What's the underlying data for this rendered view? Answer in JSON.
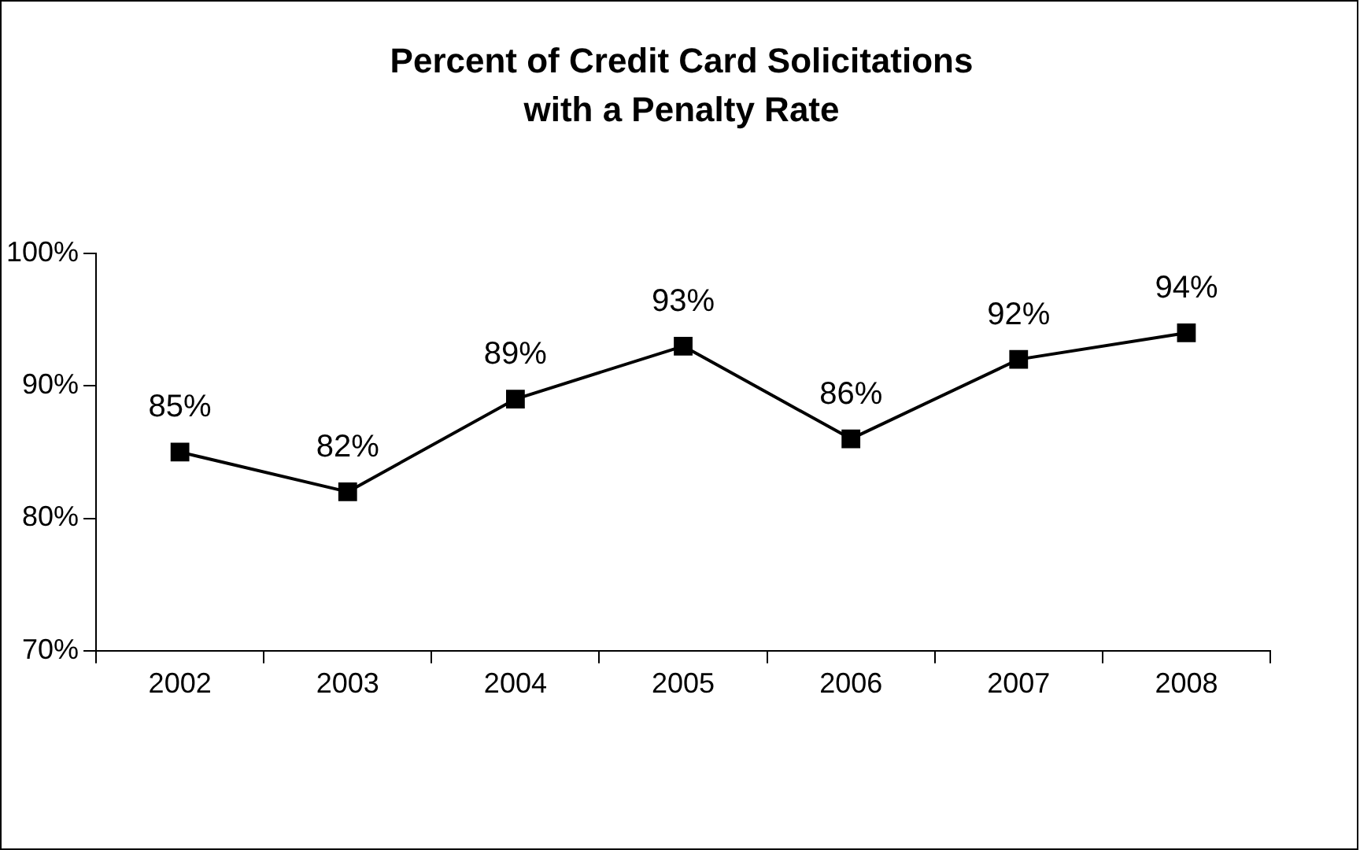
{
  "chart_data": {
    "type": "line",
    "title": "Percent of Credit Card Solicitations with a Penalty Rate",
    "categories": [
      "2002",
      "2003",
      "2004",
      "2005",
      "2006",
      "2007",
      "2008"
    ],
    "series": [
      {
        "color": "#000000",
        "values": [
          85,
          82,
          89,
          93,
          86,
          92,
          94
        ],
        "value_labels": [
          "85%",
          "82%",
          "89%",
          "93%",
          "86%",
          "92%",
          "94%"
        ]
      }
    ],
    "ylim": [
      70,
      100
    ],
    "yticks": [
      {
        "value": 70,
        "label": "70%"
      },
      {
        "value": 80,
        "label": "80%"
      },
      {
        "value": 90,
        "label": "90%"
      },
      {
        "value": 100,
        "label": "100%"
      }
    ],
    "marker": "square",
    "line_style": "solid",
    "grid": false,
    "legend": false
  }
}
